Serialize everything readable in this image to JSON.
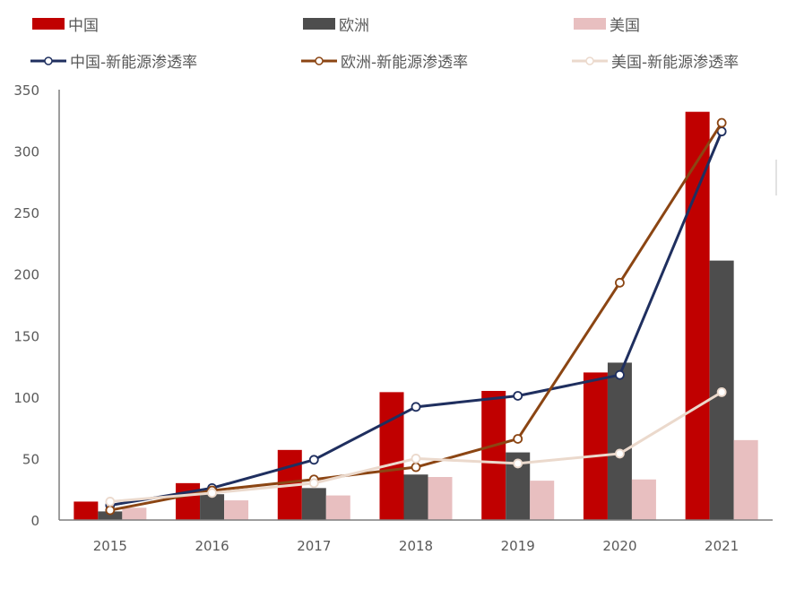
{
  "legend": {
    "items": [
      {
        "label": "中国",
        "kind": "bar",
        "color": "#C00000"
      },
      {
        "label": "欧洲",
        "kind": "bar",
        "color": "#4D4D4D"
      },
      {
        "label": "美国",
        "kind": "bar",
        "color": "#E8BFC0"
      },
      {
        "label": "中国-新能源渗透率",
        "kind": "line",
        "color": "#1F2F5F"
      },
      {
        "label": "欧洲-新能源渗透率",
        "kind": "line",
        "color": "#8B4513"
      },
      {
        "label": "美国-新能源渗透率",
        "kind": "line",
        "color": "#EBD9CC"
      }
    ]
  },
  "chart_data": {
    "type": "bar",
    "title": "",
    "xlabel": "",
    "ylabel": "",
    "ylim": [
      0,
      350
    ],
    "yticks": [
      0,
      50,
      100,
      150,
      200,
      250,
      300,
      350
    ],
    "grid": false,
    "legend_position": "top",
    "categories": [
      "2015",
      "2016",
      "2017",
      "2018",
      "2019",
      "2020",
      "2021"
    ],
    "series": [
      {
        "name": "中国",
        "type": "bar",
        "color": "#C00000",
        "values": [
          15,
          30,
          57,
          104,
          105,
          120,
          332
        ]
      },
      {
        "name": "欧洲",
        "type": "bar",
        "color": "#4D4D4D",
        "values": [
          7,
          21,
          26,
          37,
          55,
          128,
          211
        ]
      },
      {
        "name": "美国",
        "type": "bar",
        "color": "#E8BFC0",
        "values": [
          10,
          16,
          20,
          35,
          32,
          33,
          65
        ]
      },
      {
        "name": "中国-新能源渗透率",
        "type": "line",
        "color": "#1F2F5F",
        "values": [
          12,
          26,
          49,
          92,
          101,
          118,
          316
        ]
      },
      {
        "name": "欧洲-新能源渗透率",
        "type": "line",
        "color": "#8B4513",
        "values": [
          8,
          24,
          33,
          43,
          66,
          193,
          323
        ]
      },
      {
        "name": "美国-新能源渗透率",
        "type": "line",
        "color": "#EBD9CC",
        "values": [
          15,
          22,
          30,
          50,
          46,
          54,
          104
        ]
      }
    ]
  }
}
